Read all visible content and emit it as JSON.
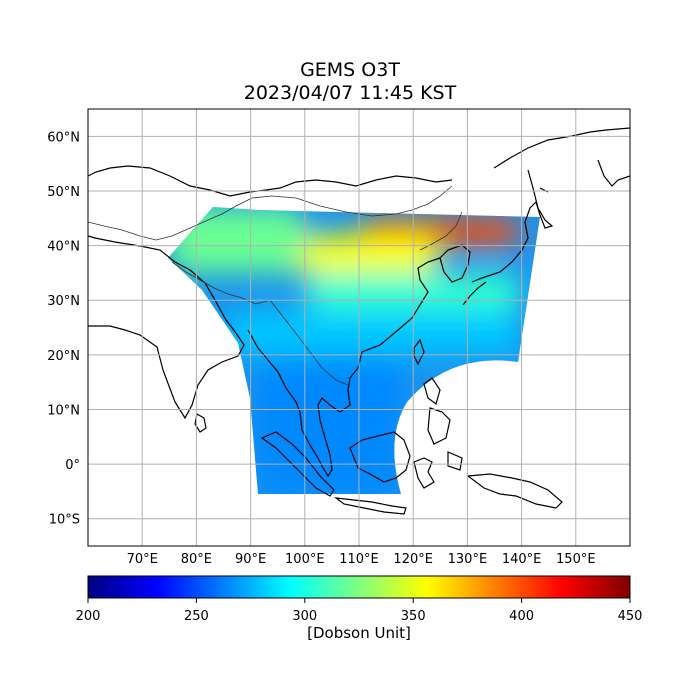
{
  "chart_data": {
    "type": "heatmap",
    "title": "GEMS O3T",
    "subtitle": "2023/04/07 11:45 KST",
    "map_extent": {
      "lon": [
        60,
        160
      ],
      "lat": [
        -15,
        65
      ]
    },
    "grid": true,
    "lat_ticks": [
      60,
      50,
      40,
      30,
      20,
      10,
      0,
      -10
    ],
    "lat_tick_labels": [
      "60°N",
      "50°N",
      "40°N",
      "30°N",
      "20°N",
      "10°N",
      "0°",
      "10°S"
    ],
    "lon_ticks": [
      70,
      80,
      90,
      100,
      110,
      120,
      130,
      140,
      150
    ],
    "lon_tick_labels": [
      "70°E",
      "80°E",
      "90°E",
      "100°E",
      "110°E",
      "120°E",
      "130°E",
      "140°E",
      "150°E"
    ],
    "colorbar": {
      "min": 200,
      "max": 450,
      "ticks": [
        200,
        250,
        300,
        350,
        400,
        450
      ],
      "tick_labels": [
        "200",
        "250",
        "300",
        "350",
        "400",
        "450"
      ],
      "label": "[Dobson Unit]",
      "colormap": [
        "#00007f",
        "#0000ff",
        "#007fff",
        "#00ffff",
        "#7fff7f",
        "#ffff00",
        "#ff7f00",
        "#ff0000",
        "#7f0000"
      ]
    },
    "ozone_regions": [
      {
        "lon": [
          110,
          140
        ],
        "lat": [
          40,
          45
        ],
        "value": 400
      },
      {
        "lon": [
          95,
          125
        ],
        "lat": [
          35,
          42
        ],
        "value": 355
      },
      {
        "lon": [
          75,
          100
        ],
        "lat": [
          35,
          47
        ],
        "value": 320
      },
      {
        "lon": [
          100,
          140
        ],
        "lat": [
          28,
          35
        ],
        "value": 305
      },
      {
        "lon": [
          85,
          140
        ],
        "lat": [
          20,
          28
        ],
        "value": 280
      },
      {
        "lon": [
          91,
          118
        ],
        "lat": [
          -6,
          20
        ],
        "value": 265
      }
    ]
  }
}
